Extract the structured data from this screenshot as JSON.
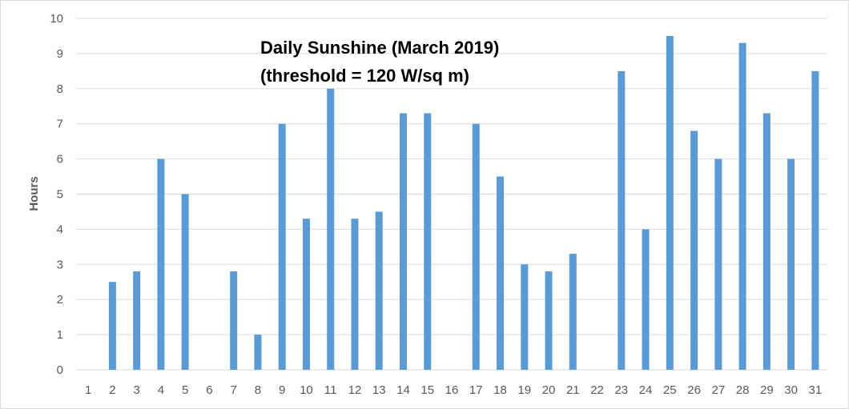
{
  "chart_data": {
    "type": "bar",
    "title_lines": [
      "Daily Sunshine (March 2019)",
      "(threshold = 120 W/sq m)"
    ],
    "xlabel": "",
    "ylabel": "Hours",
    "ylim": [
      0,
      10
    ],
    "yticks": [
      0,
      1,
      2,
      3,
      4,
      5,
      6,
      7,
      8,
      9,
      10
    ],
    "grid": true,
    "legend": "none",
    "bar_color": "#5b9bd5",
    "grid_color": "#d9d9d9",
    "categories": [
      "1",
      "2",
      "3",
      "4",
      "5",
      "6",
      "7",
      "8",
      "9",
      "10",
      "11",
      "12",
      "13",
      "14",
      "15",
      "16",
      "17",
      "18",
      "19",
      "20",
      "21",
      "22",
      "23",
      "24",
      "25",
      "26",
      "27",
      "28",
      "29",
      "30",
      "31"
    ],
    "values": [
      0,
      2.5,
      2.8,
      6,
      5,
      0,
      2.8,
      1,
      7,
      4.3,
      8,
      4.3,
      4.5,
      7.3,
      7.3,
      0,
      7,
      5.5,
      3,
      2.8,
      3.3,
      0,
      8.5,
      4,
      9.5,
      6.8,
      6,
      9.3,
      7.3,
      6,
      8.5
    ]
  }
}
